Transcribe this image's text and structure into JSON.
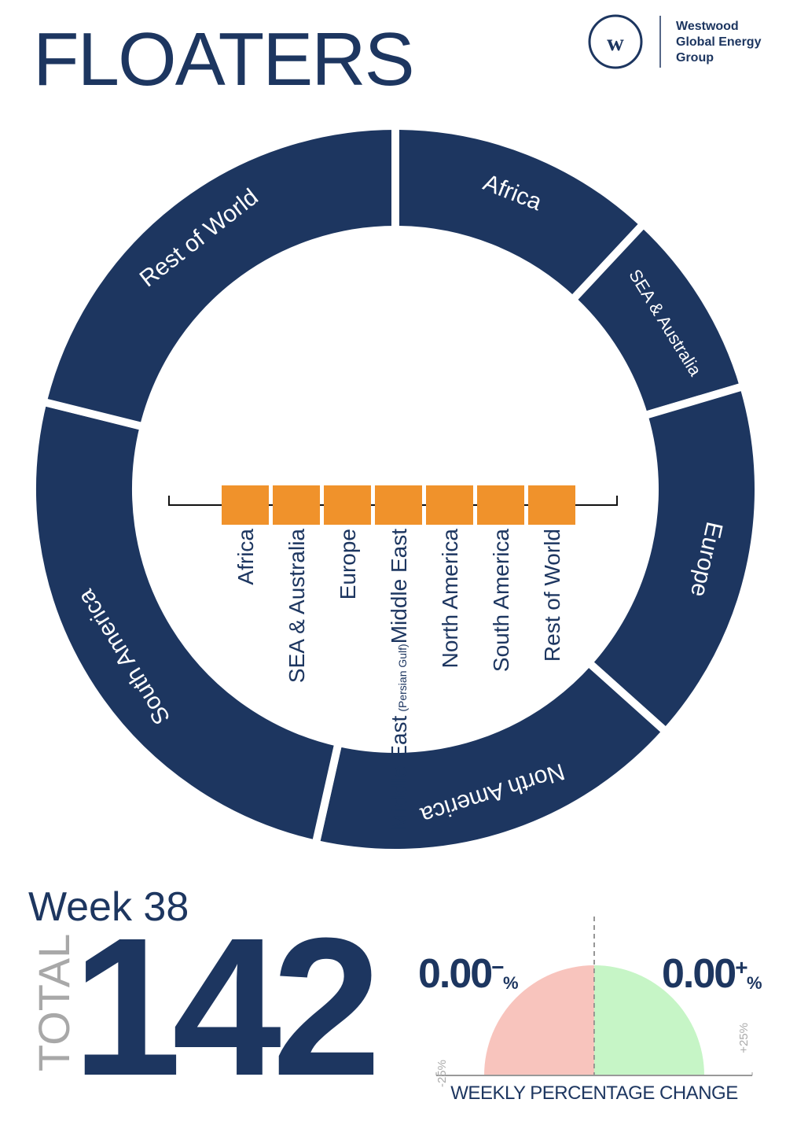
{
  "header": {
    "title": "FLOATERS",
    "logo_lines": [
      "Westwood",
      "Global Energy",
      "Group"
    ]
  },
  "chart_data": [
    {
      "type": "donut",
      "color": "#1d3660",
      "label_color": "#ffffff",
      "categories": [
        "Africa",
        "SEA & Australia",
        "Europe",
        "North America",
        "South America",
        "Rest of World"
      ],
      "values": [
        17,
        12,
        23,
        24,
        36,
        30
      ]
    },
    {
      "type": "key",
      "color": "#f0922b",
      "categories": [
        "Africa",
        "SEA & Australia",
        "Europe",
        "Middle East",
        "North America",
        "South America",
        "Rest of World"
      ],
      "notes": [
        null,
        null,
        null,
        "(Persian Gulf)",
        null,
        null,
        null
      ]
    },
    {
      "type": "gauge",
      "title": "WEEKLY PERCENTAGE CHANGE",
      "series": [
        {
          "name": "−",
          "color": "#f8c4bd",
          "values": [
            0
          ],
          "value_labels": [
            "0.00"
          ]
        },
        {
          "name": "+",
          "color": "#c6f5c6",
          "values": [
            0
          ],
          "value_labels": [
            "0.00"
          ]
        }
      ],
      "unit": "%",
      "xlim": [
        -25,
        25
      ],
      "xticks": [
        {
          "value": -25,
          "label": "-25%"
        },
        {
          "value": 25,
          "label": "+25%"
        }
      ]
    }
  ],
  "summary": {
    "week": "Week 38",
    "total_label": "TOTAL",
    "total": 142
  }
}
